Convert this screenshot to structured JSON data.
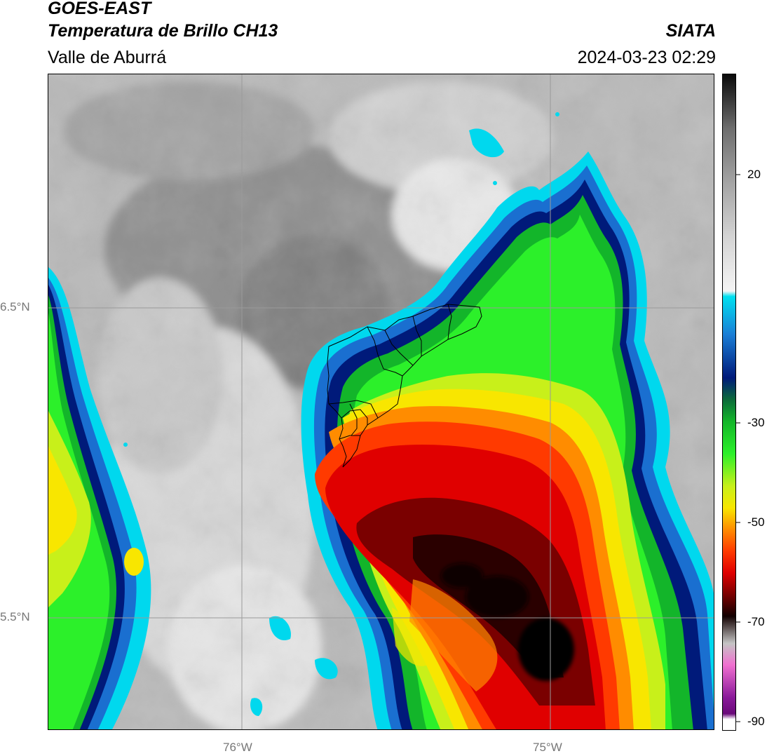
{
  "header": {
    "satellite": "GOES-EAST",
    "product": "Temperatura de Brillo CH13",
    "region": "Valle de Aburrá",
    "agency": "SIATA",
    "datetime": "2024-03-23 02:29"
  },
  "map": {
    "lat_labels": [
      "6.5°N",
      "5.5°N"
    ],
    "lon_labels": [
      "76°W",
      "75°W"
    ],
    "grid_color": "#9a9a9a",
    "boundary_color": "#000000"
  },
  "colorbar": {
    "ticks": [
      "20",
      "-30",
      "-50",
      "-70",
      "-90"
    ],
    "stops": [
      {
        "t": 30,
        "color": "#0a0a0a"
      },
      {
        "t": 20,
        "color": "#6e6e6e"
      },
      {
        "t": 10,
        "color": "#a4a4a4"
      },
      {
        "t": 0,
        "color": "#d4d4d4"
      },
      {
        "t": -10,
        "color": "#f4f4f4"
      },
      {
        "t": -11,
        "color": "#00e0f0"
      },
      {
        "t": -18,
        "color": "#1a7ed6"
      },
      {
        "t": -26,
        "color": "#001a7a"
      },
      {
        "t": -30,
        "color": "#0b6a3a"
      },
      {
        "t": -34,
        "color": "#13b52a"
      },
      {
        "t": -40,
        "color": "#2cf02a"
      },
      {
        "t": -46,
        "color": "#c8f01a"
      },
      {
        "t": -50,
        "color": "#f8e600"
      },
      {
        "t": -54,
        "color": "#ff8c00"
      },
      {
        "t": -58,
        "color": "#ff3a00"
      },
      {
        "t": -62,
        "color": "#e00000"
      },
      {
        "t": -66,
        "color": "#7a0000"
      },
      {
        "t": -70,
        "color": "#120000"
      },
      {
        "t": -75,
        "color": "#c4c4c4"
      },
      {
        "t": -79,
        "color": "#f070d0"
      },
      {
        "t": -85,
        "color": "#8a1a9a"
      },
      {
        "t": -88,
        "color": "#6a0a7a"
      },
      {
        "t": -89,
        "color": "#ffffff"
      }
    ]
  }
}
